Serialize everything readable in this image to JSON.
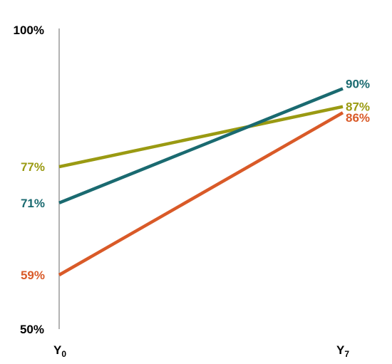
{
  "chart_data": {
    "type": "line",
    "x": [
      "Y0",
      "Y7"
    ],
    "x_tick_labels": [
      {
        "base": "Y",
        "sub": "0"
      },
      {
        "base": "Y",
        "sub": "7"
      }
    ],
    "ylim": [
      50,
      100
    ],
    "y_tick_labels": [
      "50%",
      "100%"
    ],
    "grid": false,
    "legend": "none",
    "series": [
      {
        "key": "teal",
        "color": "#1a6a70",
        "values": [
          71,
          90
        ],
        "labels": [
          "71%",
          "90%"
        ]
      },
      {
        "key": "olive",
        "color": "#9a9a12",
        "values": [
          77,
          87
        ],
        "labels": [
          "77%",
          "87%"
        ]
      },
      {
        "key": "orange",
        "color": "#d95a28",
        "values": [
          59,
          86
        ],
        "labels": [
          "59%",
          "86%"
        ]
      }
    ]
  }
}
